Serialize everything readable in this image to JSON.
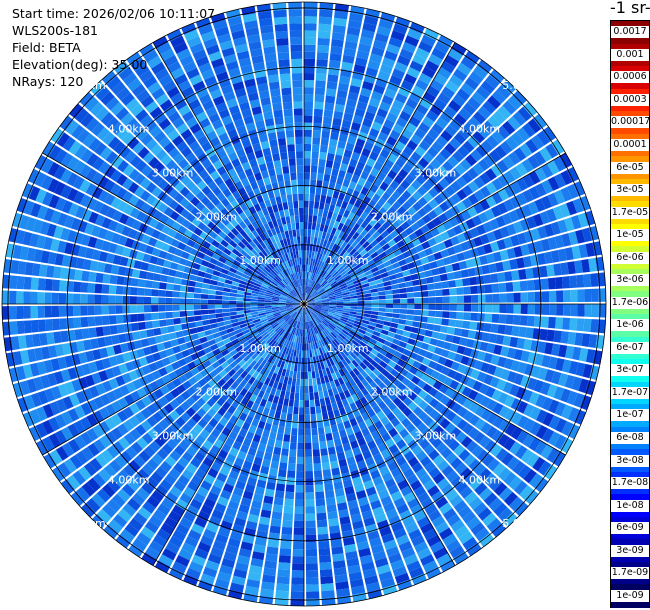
{
  "header": {
    "start_time": "Start time: 2026/02/06 10:11:07",
    "device": "WLS200s-181",
    "field": "Field: BETA",
    "elevation": "Elevation(deg): 35.00",
    "nrays": "NRays: 120"
  },
  "colorbar": {
    "title": "-1 sr-",
    "labels": [
      "0.0017",
      "0.001",
      "0.0006",
      "0.0003",
      "0.00017",
      "0.0001",
      "6e-05",
      "3e-05",
      "1.7e-05",
      "1e-05",
      "6e-06",
      "3e-06",
      "1.7e-06",
      "1e-06",
      "6e-07",
      "3e-07",
      "1.7e-07",
      "1e-07",
      "6e-08",
      "3e-08",
      "1.7e-08",
      "1e-08",
      "6e-09",
      "3e-09",
      "1.7e-09",
      "1e-09"
    ],
    "colors": [
      "#8b0000",
      "#b00000",
      "#d80000",
      "#ff2000",
      "#ff4a00",
      "#ff7000",
      "#ff9600",
      "#ffba00",
      "#ffdc00",
      "#ffff00",
      "#d2ff32",
      "#a6ff5c",
      "#80ff80",
      "#5cffa6",
      "#32ffd2",
      "#10ffef",
      "#00d6ff",
      "#00aaff",
      "#0082ff",
      "#005aff",
      "#0030ff",
      "#0000ff",
      "#0000d8",
      "#0000b0",
      "#000088",
      "#000060"
    ]
  },
  "chart_data": {
    "type": "ppi",
    "title": "",
    "field": "BETA",
    "elevation_deg": 35.0,
    "n_rays": 120,
    "max_range_km": 5.1,
    "range_rings_km": [
      1,
      2,
      3,
      4,
      5
    ],
    "ring_labels": [
      "1.00km",
      "2.00km",
      "3.00km",
      "4.00km",
      "5.00km"
    ],
    "dominant_value_range": [
      1.7e-08,
      1.7e-07
    ]
  }
}
